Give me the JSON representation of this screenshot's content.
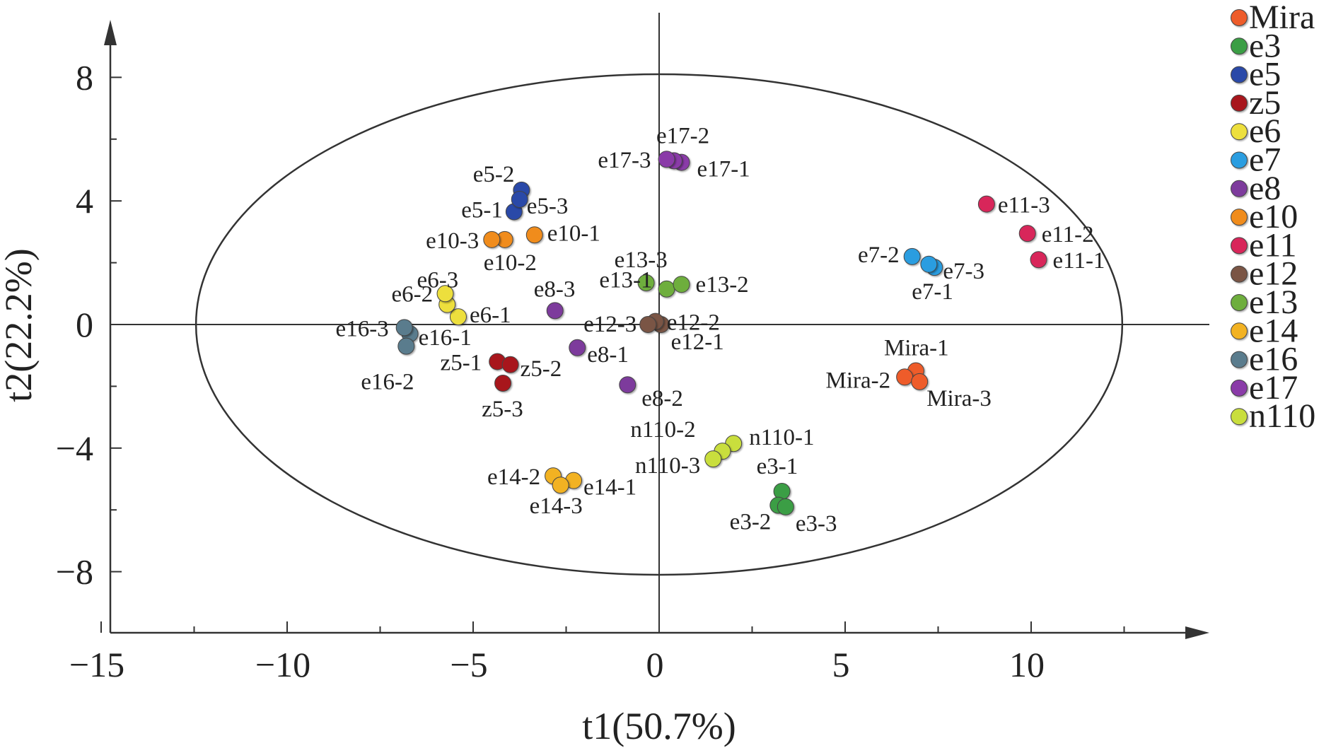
{
  "chart_data": {
    "type": "scatter",
    "title": "",
    "xlabel": "t1(50.7%)",
    "ylabel": "t2(22.2%)",
    "xlim": [
      -15,
      14.5
    ],
    "ylim": [
      -9.9,
      9.6
    ],
    "xticks": [
      -15,
      -10,
      -5,
      0,
      5,
      10
    ],
    "yticks": [
      -8,
      -4,
      0,
      4,
      8
    ],
    "xtick_labels": [
      "−15",
      "−10",
      "−5",
      "0",
      "5",
      "10"
    ],
    "ytick_labels": [
      "−8",
      "−4",
      "0",
      "4",
      "8"
    ],
    "ellipse": {
      "cx": 0,
      "cy": 0,
      "rx": 12.45,
      "ry": 8.1
    },
    "legend_position": "right",
    "series": [
      {
        "name": "Mira",
        "color": "#ee5b2a",
        "points": [
          {
            "label": "Mira-1",
            "x": 6.9,
            "y": -1.5
          },
          {
            "label": "Mira-2",
            "x": 6.6,
            "y": -1.7
          },
          {
            "label": "Mira-3",
            "x": 7.0,
            "y": -1.85
          }
        ]
      },
      {
        "name": "e3",
        "color": "#3a9e45",
        "points": [
          {
            "label": "e3-1",
            "x": 3.3,
            "y": -5.4
          },
          {
            "label": "e3-2",
            "x": 3.2,
            "y": -5.85
          },
          {
            "label": "e3-3",
            "x": 3.4,
            "y": -5.9
          }
        ]
      },
      {
        "name": "e5",
        "color": "#2c49a8",
        "points": [
          {
            "label": "e5-1",
            "x": -3.9,
            "y": 3.65
          },
          {
            "label": "e5-2",
            "x": -3.7,
            "y": 4.35
          },
          {
            "label": "e5-3",
            "x": -3.75,
            "y": 4.05
          }
        ]
      },
      {
        "name": "z5",
        "color": "#a8191e",
        "points": [
          {
            "label": "z5-1",
            "x": -4.35,
            "y": -1.2
          },
          {
            "label": "z5-2",
            "x": -4.0,
            "y": -1.3
          },
          {
            "label": "z5-3",
            "x": -4.2,
            "y": -1.9
          }
        ]
      },
      {
        "name": "e6",
        "color": "#eddf3e",
        "points": [
          {
            "label": "e6-1",
            "x": -5.4,
            "y": 0.25
          },
          {
            "label": "e6-2",
            "x": -5.7,
            "y": 0.65
          },
          {
            "label": "e6-3",
            "x": -5.75,
            "y": 1.0
          }
        ]
      },
      {
        "name": "e7",
        "color": "#2a9de0",
        "points": [
          {
            "label": "e7-1",
            "x": 7.4,
            "y": 1.85
          },
          {
            "label": "e7-2",
            "x": 6.8,
            "y": 2.2
          },
          {
            "label": "e7-3",
            "x": 7.25,
            "y": 1.95
          }
        ]
      },
      {
        "name": "e8",
        "color": "#7d3a9c",
        "points": [
          {
            "label": "e8-1",
            "x": -2.2,
            "y": -0.75
          },
          {
            "label": "e8-2",
            "x": -0.85,
            "y": -1.95
          },
          {
            "label": "e8-3",
            "x": -2.8,
            "y": 0.45
          }
        ]
      },
      {
        "name": "e10",
        "color": "#f08c1c",
        "points": [
          {
            "label": "e10-1",
            "x": -3.35,
            "y": 2.9
          },
          {
            "label": "e10-2",
            "x": -4.15,
            "y": 2.75
          },
          {
            "label": "e10-3",
            "x": -4.5,
            "y": 2.75
          }
        ]
      },
      {
        "name": "e11",
        "color": "#d8265a",
        "points": [
          {
            "label": "e11-1",
            "x": 10.2,
            "y": 2.1
          },
          {
            "label": "e11-2",
            "x": 9.9,
            "y": 2.95
          },
          {
            "label": "e11-3",
            "x": 8.8,
            "y": 3.9
          }
        ]
      },
      {
        "name": "e12",
        "color": "#7a5444",
        "points": [
          {
            "label": "e12-1",
            "x": 0.05,
            "y": 0.0
          },
          {
            "label": "e12-2",
            "x": -0.1,
            "y": 0.1
          },
          {
            "label": "e12-3",
            "x": -0.3,
            "y": 0.0
          }
        ]
      },
      {
        "name": "e13",
        "color": "#6eae3c",
        "points": [
          {
            "label": "e13-1",
            "x": 0.2,
            "y": 1.15
          },
          {
            "label": "e13-2",
            "x": 0.6,
            "y": 1.3
          },
          {
            "label": "e13-3",
            "x": -0.35,
            "y": 1.35
          }
        ]
      },
      {
        "name": "e14",
        "color": "#f2b224",
        "points": [
          {
            "label": "e14-1",
            "x": -2.3,
            "y": -5.05
          },
          {
            "label": "e14-2",
            "x": -2.85,
            "y": -4.9
          },
          {
            "label": "e14-3",
            "x": -2.65,
            "y": -5.2
          }
        ]
      },
      {
        "name": "e16",
        "color": "#5a7c8d",
        "points": [
          {
            "label": "e16-1",
            "x": -6.7,
            "y": -0.3
          },
          {
            "label": "e16-2",
            "x": -6.8,
            "y": -0.7
          },
          {
            "label": "e16-3",
            "x": -6.85,
            "y": -0.1
          }
        ]
      },
      {
        "name": "e17",
        "color": "#8a3aa8",
        "points": [
          {
            "label": "e17-1",
            "x": 0.6,
            "y": 5.25
          },
          {
            "label": "e17-2",
            "x": 0.4,
            "y": 5.3
          },
          {
            "label": "e17-3",
            "x": 0.2,
            "y": 5.35
          }
        ]
      },
      {
        "name": "n110",
        "color": "#c9de3e",
        "points": [
          {
            "label": "n110-1",
            "x": 2.0,
            "y": -3.85
          },
          {
            "label": "n110-2",
            "x": 1.7,
            "y": -4.1
          },
          {
            "label": "n110-3",
            "x": 1.45,
            "y": -4.35
          }
        ]
      }
    ]
  }
}
